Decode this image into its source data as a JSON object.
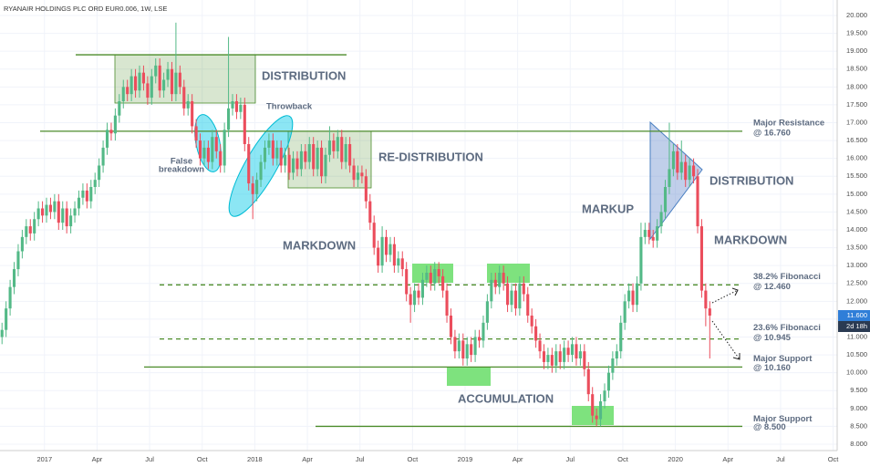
{
  "chart_data": {
    "type": "candlestick",
    "title": "RYANAIR HOLDINGS PLC ORD EUR0.006, 1W, LSE",
    "up_color": "#53b987",
    "down_color": "#eb4d5c",
    "grid": true,
    "xlim": [
      0,
      207
    ],
    "ylim": [
      8,
      20
    ],
    "xticks": [
      {
        "value": 11,
        "label": "2017"
      },
      {
        "value": 24,
        "label": "Apr"
      },
      {
        "value": 37,
        "label": "Jul"
      },
      {
        "value": 50,
        "label": "Oct"
      },
      {
        "value": 63,
        "label": "2018"
      },
      {
        "value": 76,
        "label": "Apr"
      },
      {
        "value": 89,
        "label": "Jul"
      },
      {
        "value": 102,
        "label": "Oct"
      },
      {
        "value": 115,
        "label": "2019"
      },
      {
        "value": 128,
        "label": "Apr"
      },
      {
        "value": 141,
        "label": "Jul"
      },
      {
        "value": 154,
        "label": "Oct"
      },
      {
        "value": 167,
        "label": "2020"
      },
      {
        "value": 180,
        "label": "Apr"
      },
      {
        "value": 193,
        "label": "Jul"
      },
      {
        "value": 206,
        "label": "Oct"
      }
    ],
    "yticks": [
      {
        "value": 8,
        "label": "8.000"
      },
      {
        "value": 8.5,
        "label": "8.500"
      },
      {
        "value": 9,
        "label": "9.000"
      },
      {
        "value": 9.5,
        "label": "9.500"
      },
      {
        "value": 10,
        "label": "10.000"
      },
      {
        "value": 10.5,
        "label": "10.500"
      },
      {
        "value": 11,
        "label": "11.000"
      },
      {
        "value": 11.5,
        "label": "11.500"
      },
      {
        "value": 12,
        "label": "12.000"
      },
      {
        "value": 12.5,
        "label": "12.500"
      },
      {
        "value": 13,
        "label": "13.000"
      },
      {
        "value": 13.5,
        "label": "13.500"
      },
      {
        "value": 14,
        "label": "14.000"
      },
      {
        "value": 14.5,
        "label": "14.500"
      },
      {
        "value": 15,
        "label": "15.000"
      },
      {
        "value": 15.5,
        "label": "15.500"
      },
      {
        "value": 16,
        "label": "16.000"
      },
      {
        "value": 16.5,
        "label": "16.500"
      },
      {
        "value": 17,
        "label": "17.000"
      },
      {
        "value": 17.5,
        "label": "17.500"
      },
      {
        "value": 18,
        "label": "18.000"
      },
      {
        "value": 18.5,
        "label": "18.500"
      },
      {
        "value": 19,
        "label": "19.000"
      },
      {
        "value": 19.5,
        "label": "19.500"
      },
      {
        "value": 20,
        "label": "20.000"
      }
    ],
    "last_price": {
      "value": 11.6,
      "label": "11.600"
    },
    "countdown": "2d 18h",
    "levels": [
      {
        "value": 18.9
      },
      {
        "value": 16.76,
        "label": [
          "Major Resistance",
          "@ 16.760"
        ]
      },
      {
        "value": 12.46,
        "label": [
          "38.2% Fibonacci",
          "@ 12.460"
        ]
      },
      {
        "value": 10.945,
        "label": [
          "23.6% Fibonacci",
          "@ 10.945"
        ]
      },
      {
        "value": 10.16,
        "label": [
          "Major Support",
          "@ 10.160"
        ]
      },
      {
        "value": 8.5,
        "label": [
          "Major Support",
          "@ 8.500"
        ]
      }
    ],
    "annotations": [
      "DISTRIBUTION",
      "Throwback",
      [
        "False",
        "breakdown"
      ],
      "RE-DISTRIBUTION",
      "MARKDOWN",
      "ACCUMULATION",
      "MARKUP",
      "DISTRIBUTION",
      "MARKDOWN"
    ],
    "ohlc": [
      [
        11.0,
        11.4,
        10.8,
        11.2
      ],
      [
        11.2,
        12.0,
        11.0,
        11.8
      ],
      [
        11.8,
        12.6,
        11.6,
        12.4
      ],
      [
        12.4,
        13.1,
        12.2,
        12.9
      ],
      [
        12.9,
        13.6,
        12.7,
        13.4
      ],
      [
        13.4,
        14.0,
        13.2,
        13.8
      ],
      [
        13.8,
        14.3,
        13.6,
        14.1
      ],
      [
        14.1,
        14.3,
        13.7,
        13.9
      ],
      [
        13.9,
        14.5,
        13.7,
        14.3
      ],
      [
        14.3,
        14.8,
        14.1,
        14.6
      ],
      [
        14.6,
        14.8,
        14.2,
        14.4
      ],
      [
        14.4,
        14.9,
        14.2,
        14.7
      ],
      [
        14.7,
        14.9,
        14.3,
        14.5
      ],
      [
        14.5,
        15.0,
        14.3,
        14.8
      ],
      [
        14.8,
        15.0,
        14.0,
        14.2
      ],
      [
        14.2,
        14.8,
        14.0,
        14.6
      ],
      [
        14.6,
        14.8,
        13.9,
        14.1
      ],
      [
        14.1,
        14.6,
        13.9,
        14.4
      ],
      [
        14.4,
        14.8,
        14.2,
        14.6
      ],
      [
        14.6,
        15.1,
        14.4,
        14.9
      ],
      [
        14.9,
        15.3,
        14.7,
        15.1
      ],
      [
        15.1,
        15.3,
        14.6,
        14.8
      ],
      [
        14.8,
        15.4,
        14.6,
        15.2
      ],
      [
        15.2,
        15.6,
        15.0,
        15.4
      ],
      [
        15.4,
        16.0,
        15.2,
        15.8
      ],
      [
        15.8,
        16.5,
        15.6,
        16.3
      ],
      [
        16.3,
        17.0,
        16.1,
        16.8
      ],
      [
        16.8,
        17.0,
        16.5,
        16.7
      ],
      [
        16.7,
        17.4,
        16.5,
        17.2
      ],
      [
        17.2,
        17.8,
        17.0,
        17.6
      ],
      [
        17.6,
        18.2,
        17.4,
        18.0
      ],
      [
        18.0,
        18.2,
        17.6,
        17.8
      ],
      [
        17.8,
        18.5,
        17.6,
        18.3
      ],
      [
        18.3,
        18.5,
        17.7,
        17.9
      ],
      [
        17.9,
        18.6,
        17.7,
        18.4
      ],
      [
        18.4,
        18.6,
        17.9,
        18.1
      ],
      [
        18.1,
        18.3,
        17.5,
        17.7
      ],
      [
        17.7,
        18.5,
        17.5,
        18.3
      ],
      [
        18.3,
        18.8,
        18.1,
        18.6
      ],
      [
        18.6,
        18.8,
        17.7,
        17.9
      ],
      [
        17.9,
        18.4,
        17.7,
        18.2
      ],
      [
        18.2,
        18.7,
        18.0,
        18.5
      ],
      [
        18.5,
        18.7,
        17.6,
        17.8
      ],
      [
        17.8,
        19.8,
        17.6,
        18.4
      ],
      [
        18.4,
        18.6,
        17.8,
        18.0
      ],
      [
        18.0,
        18.2,
        17.2,
        17.4
      ],
      [
        17.4,
        17.8,
        17.2,
        17.6
      ],
      [
        17.6,
        17.8,
        16.7,
        16.9
      ],
      [
        16.9,
        17.1,
        16.3,
        16.5
      ],
      [
        16.5,
        16.7,
        15.8,
        16.0
      ],
      [
        16.0,
        16.5,
        15.8,
        16.3
      ],
      [
        16.3,
        16.5,
        15.7,
        15.9
      ],
      [
        15.9,
        16.8,
        15.7,
        16.6
      ],
      [
        16.6,
        16.8,
        16.0,
        16.2
      ],
      [
        16.2,
        16.4,
        15.6,
        15.8
      ],
      [
        15.8,
        17.0,
        15.6,
        16.8
      ],
      [
        16.8,
        19.4,
        16.6,
        17.4
      ],
      [
        17.4,
        17.8,
        17.2,
        17.6
      ],
      [
        17.6,
        17.8,
        17.1,
        17.3
      ],
      [
        17.3,
        17.7,
        17.1,
        17.5
      ],
      [
        17.5,
        17.7,
        16.2,
        16.4
      ],
      [
        16.4,
        16.6,
        15.1,
        15.3
      ],
      [
        15.3,
        15.5,
        14.3,
        15.0
      ],
      [
        15.0,
        15.6,
        14.8,
        15.4
      ],
      [
        15.4,
        16.1,
        15.2,
        15.9
      ],
      [
        15.9,
        16.5,
        15.7,
        16.3
      ],
      [
        16.3,
        16.7,
        16.1,
        16.5
      ],
      [
        16.5,
        16.7,
        15.8,
        16.0
      ],
      [
        16.0,
        16.5,
        15.8,
        16.3
      ],
      [
        16.3,
        16.5,
        15.6,
        15.8
      ],
      [
        15.8,
        16.3,
        15.6,
        16.1
      ],
      [
        16.1,
        16.3,
        15.4,
        15.6
      ],
      [
        15.6,
        16.2,
        15.4,
        16.0
      ],
      [
        16.0,
        16.2,
        15.5,
        15.7
      ],
      [
        15.7,
        16.4,
        15.5,
        16.2
      ],
      [
        16.2,
        16.4,
        15.7,
        15.9
      ],
      [
        15.9,
        16.6,
        15.7,
        16.4
      ],
      [
        16.4,
        16.6,
        15.5,
        15.7
      ],
      [
        15.7,
        16.5,
        15.5,
        16.3
      ],
      [
        16.3,
        16.5,
        15.3,
        15.5
      ],
      [
        15.5,
        16.3,
        15.3,
        16.1
      ],
      [
        16.1,
        16.9,
        15.9,
        16.5
      ],
      [
        16.5,
        16.7,
        16.0,
        16.2
      ],
      [
        16.2,
        16.8,
        16.0,
        16.6
      ],
      [
        16.6,
        16.8,
        15.7,
        15.9
      ],
      [
        15.9,
        16.6,
        15.7,
        16.4
      ],
      [
        16.4,
        16.6,
        15.6,
        15.8
      ],
      [
        15.8,
        16.0,
        15.2,
        15.4
      ],
      [
        15.4,
        15.8,
        15.2,
        15.6
      ],
      [
        15.6,
        15.8,
        15.3,
        15.5
      ],
      [
        15.5,
        15.7,
        14.6,
        14.8
      ],
      [
        14.8,
        15.0,
        14.0,
        14.2
      ],
      [
        14.2,
        14.4,
        13.3,
        13.5
      ],
      [
        13.5,
        13.7,
        12.8,
        13.0
      ],
      [
        13.0,
        14.1,
        12.8,
        13.8
      ],
      [
        13.8,
        14.0,
        13.1,
        13.3
      ],
      [
        13.3,
        13.8,
        13.1,
        13.6
      ],
      [
        13.6,
        13.8,
        12.8,
        13.0
      ],
      [
        13.0,
        13.4,
        12.8,
        13.2
      ],
      [
        13.2,
        13.4,
        12.7,
        12.9
      ],
      [
        12.9,
        13.1,
        12.0,
        12.2
      ],
      [
        12.2,
        12.4,
        11.4,
        11.9
      ],
      [
        11.9,
        12.5,
        11.7,
        12.3
      ],
      [
        12.3,
        12.5,
        11.9,
        12.1
      ],
      [
        12.1,
        12.8,
        11.9,
        12.6
      ],
      [
        12.6,
        13.0,
        12.4,
        12.8
      ],
      [
        12.8,
        13.0,
        12.3,
        12.5
      ],
      [
        12.5,
        13.1,
        12.3,
        12.9
      ],
      [
        12.9,
        13.1,
        12.5,
        12.7
      ],
      [
        12.7,
        12.9,
        12.1,
        12.3
      ],
      [
        12.3,
        12.5,
        11.4,
        11.6
      ],
      [
        11.6,
        11.8,
        10.8,
        11.0
      ],
      [
        11.0,
        11.2,
        10.4,
        10.6
      ],
      [
        10.6,
        11.1,
        10.4,
        10.9
      ],
      [
        10.9,
        11.1,
        10.2,
        10.4
      ],
      [
        10.4,
        11.0,
        10.2,
        10.8
      ],
      [
        10.8,
        11.0,
        10.3,
        10.5
      ],
      [
        10.5,
        11.2,
        10.3,
        11.0
      ],
      [
        11.0,
        11.2,
        10.7,
        10.9
      ],
      [
        10.9,
        11.6,
        10.7,
        11.4
      ],
      [
        11.4,
        12.2,
        11.2,
        12.0
      ],
      [
        12.0,
        12.8,
        11.8,
        12.6
      ],
      [
        12.6,
        12.8,
        12.2,
        12.4
      ],
      [
        12.4,
        13.0,
        12.2,
        12.8
      ],
      [
        12.8,
        13.0,
        12.3,
        12.5
      ],
      [
        12.5,
        12.7,
        11.7,
        11.9
      ],
      [
        11.9,
        12.5,
        11.7,
        12.3
      ],
      [
        12.3,
        12.5,
        11.6,
        11.8
      ],
      [
        11.8,
        12.7,
        11.6,
        12.5
      ],
      [
        12.5,
        12.7,
        12.0,
        12.2
      ],
      [
        12.2,
        12.4,
        11.4,
        11.6
      ],
      [
        11.6,
        11.8,
        11.1,
        11.3
      ],
      [
        11.3,
        11.5,
        10.7,
        10.9
      ],
      [
        10.9,
        11.1,
        10.4,
        10.6
      ],
      [
        10.6,
        10.8,
        10.1,
        10.3
      ],
      [
        10.3,
        10.7,
        10.1,
        10.5
      ],
      [
        10.5,
        10.7,
        10.0,
        10.2
      ],
      [
        10.2,
        10.8,
        10.0,
        10.6
      ],
      [
        10.6,
        10.8,
        10.1,
        10.3
      ],
      [
        10.3,
        10.9,
        10.1,
        10.7
      ],
      [
        10.7,
        10.9,
        10.3,
        10.5
      ],
      [
        10.5,
        11.0,
        10.3,
        10.8
      ],
      [
        10.8,
        11.0,
        10.2,
        10.4
      ],
      [
        10.4,
        10.8,
        10.2,
        10.6
      ],
      [
        10.6,
        10.8,
        9.9,
        10.1
      ],
      [
        10.1,
        10.3,
        9.2,
        9.4
      ],
      [
        9.4,
        9.6,
        8.6,
        8.8
      ],
      [
        8.8,
        9.0,
        8.5,
        8.7
      ],
      [
        8.7,
        9.4,
        8.5,
        9.2
      ],
      [
        9.2,
        9.7,
        9.0,
        9.5
      ],
      [
        9.5,
        10.2,
        9.3,
        10.0
      ],
      [
        10.0,
        10.6,
        9.8,
        10.4
      ],
      [
        10.4,
        10.8,
        10.2,
        10.6
      ],
      [
        10.6,
        11.6,
        10.4,
        11.4
      ],
      [
        11.4,
        12.2,
        11.2,
        12.0
      ],
      [
        12.0,
        12.5,
        11.8,
        12.3
      ],
      [
        12.3,
        12.5,
        11.7,
        11.9
      ],
      [
        11.9,
        12.7,
        11.7,
        12.5
      ],
      [
        12.5,
        14.2,
        12.3,
        13.8
      ],
      [
        13.8,
        14.2,
        13.6,
        14.0
      ],
      [
        14.0,
        14.2,
        13.6,
        13.8
      ],
      [
        13.8,
        14.0,
        13.5,
        13.7
      ],
      [
        13.7,
        14.3,
        13.5,
        14.1
      ],
      [
        14.1,
        14.7,
        13.9,
        14.5
      ],
      [
        14.5,
        15.4,
        14.3,
        15.2
      ],
      [
        15.2,
        17.0,
        15.0,
        15.7
      ],
      [
        15.7,
        16.4,
        15.5,
        16.2
      ],
      [
        16.2,
        16.4,
        15.4,
        15.6
      ],
      [
        15.6,
        16.5,
        15.4,
        15.9
      ],
      [
        15.9,
        16.1,
        15.2,
        15.4
      ],
      [
        15.4,
        16.0,
        15.2,
        15.8
      ],
      [
        15.8,
        16.0,
        15.3,
        15.5
      ],
      [
        15.5,
        15.7,
        13.9,
        14.1
      ],
      [
        14.1,
        14.3,
        12.1,
        12.3
      ],
      [
        12.3,
        12.5,
        11.3,
        11.8
      ],
      [
        11.8,
        12.0,
        10.4,
        11.6
      ]
    ]
  }
}
